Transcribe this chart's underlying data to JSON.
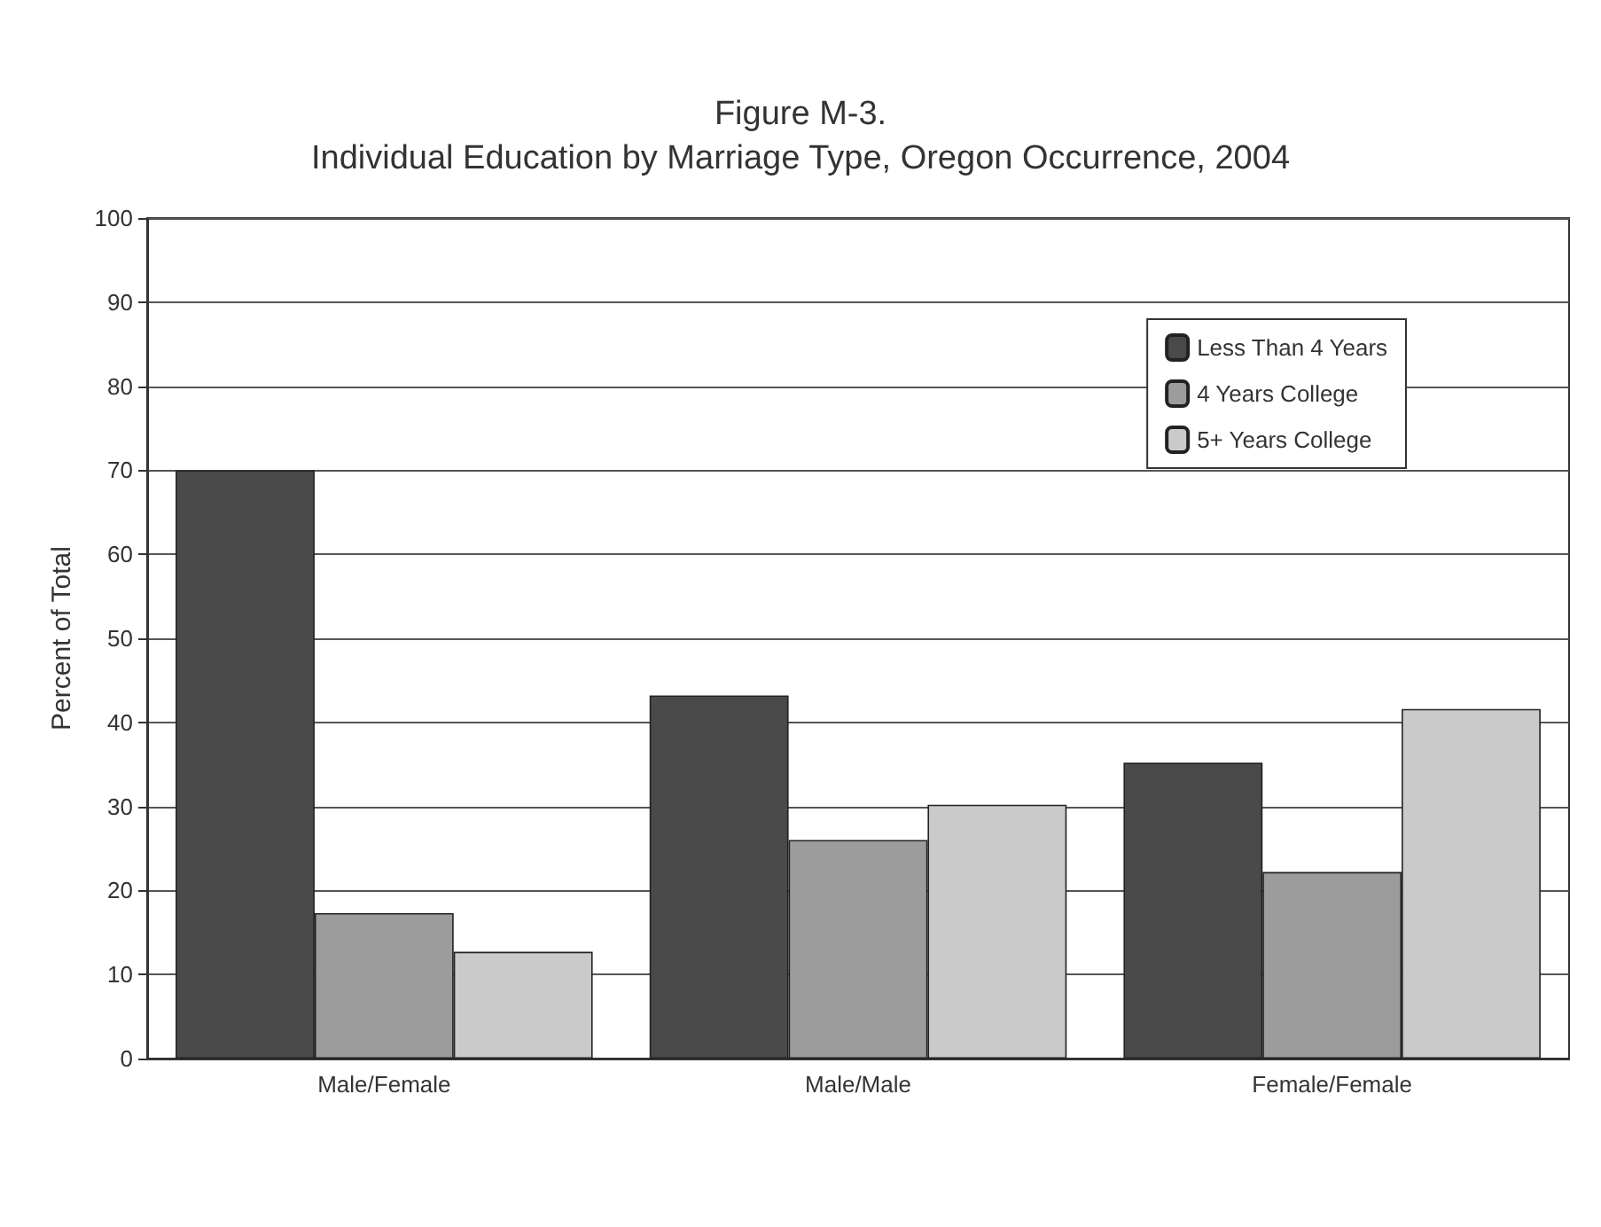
{
  "chart_data": {
    "type": "bar",
    "title": "Figure M-3.",
    "subtitle": "Individual Education by Marriage Type, Oregon Occurrence, 2004",
    "ylabel": "Percent of Total",
    "categories": [
      "Male/Female",
      "Male/Male",
      "Female/Female"
    ],
    "series": [
      {
        "name": "Less Than 4 Years",
        "color": "#4a4a4a",
        "values": [
          70,
          43.2,
          35.2
        ]
      },
      {
        "name": "4 Years College",
        "color": "#9c9c9c",
        "values": [
          17.3,
          26,
          22.2
        ]
      },
      {
        "name": "5+ Years College",
        "color": "#cacaca",
        "values": [
          12.7,
          30.2,
          41.6
        ]
      }
    ],
    "ylim": [
      0,
      100
    ],
    "yticks": [
      0,
      10,
      20,
      30,
      40,
      50,
      60,
      70,
      80,
      90,
      100
    ],
    "grid": "y",
    "legend": "top right"
  }
}
